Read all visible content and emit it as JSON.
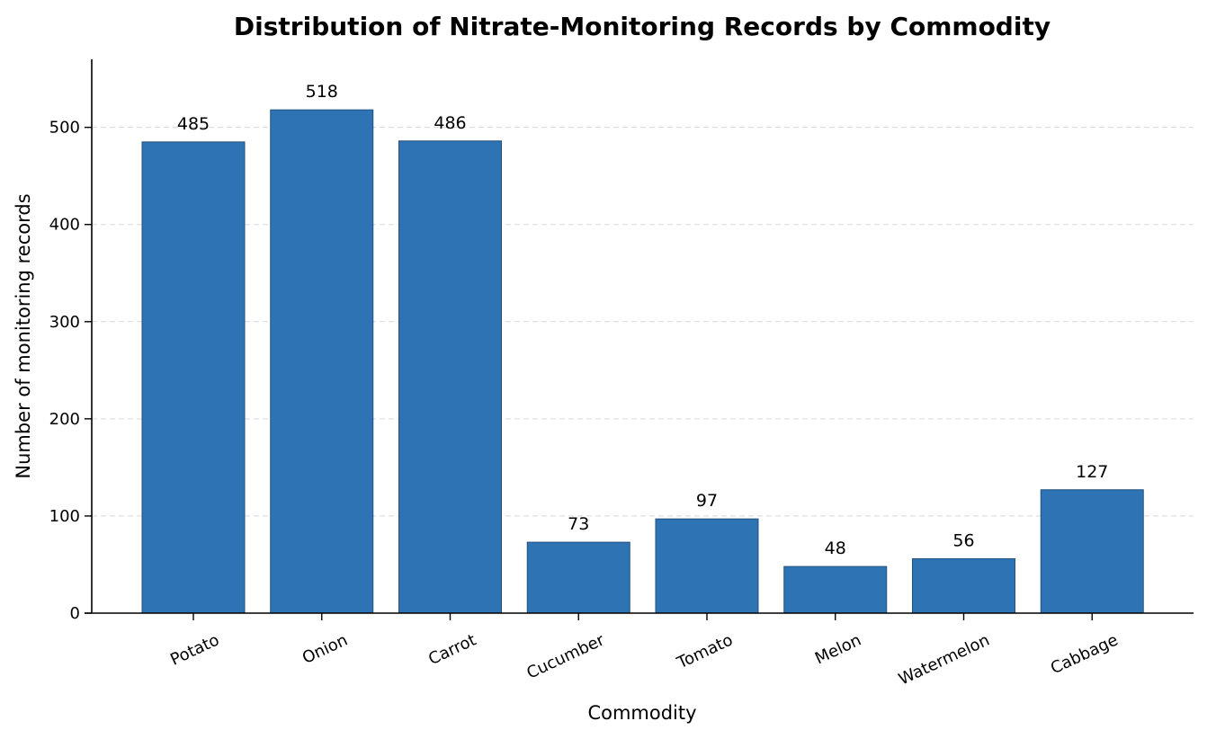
{
  "chart_data": {
    "type": "bar",
    "title": "Distribution of Nitrate-Monitoring Records by Commodity",
    "xlabel": "Commodity",
    "ylabel": "Number of monitoring records",
    "categories": [
      "Potato",
      "Onion",
      "Carrot",
      "Cucumber",
      "Tomato",
      "Melon",
      "Watermelon",
      "Cabbage"
    ],
    "values": [
      485,
      518,
      486,
      73,
      97,
      48,
      56,
      127
    ],
    "ylim": [
      0,
      570
    ],
    "yticks": [
      0,
      100,
      200,
      300,
      400,
      500
    ],
    "grid": true,
    "legend": "none",
    "bar_color": "#2e73b3",
    "bar_edge_color": "#24527f"
  }
}
